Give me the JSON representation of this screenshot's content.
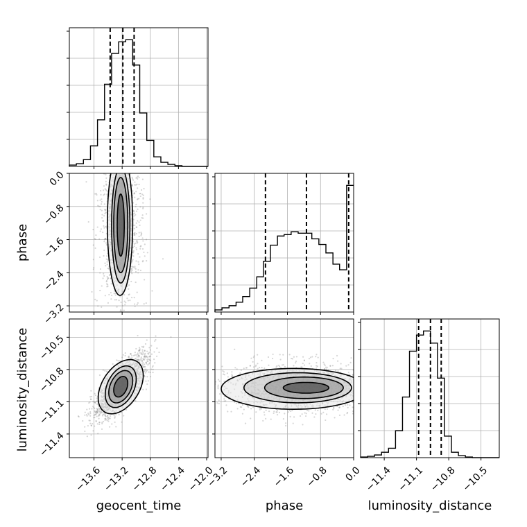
{
  "chart_data": {
    "type": "corner",
    "parameters": [
      "geocent_time",
      "phase",
      "luminosity_distance"
    ],
    "axis_labels": {
      "geocent_time": "geocent_time",
      "phase": "phase",
      "luminosity_distance": "luminosity_distance"
    },
    "ranges": {
      "geocent_time": [
        -13.95,
        -11.98
      ],
      "phase": [
        -3.35,
        0.0
      ],
      "luminosity_distance": [
        -11.62,
        -10.33
      ]
    },
    "ticks": {
      "geocent_time": {
        "values": [
          -13.6,
          -13.2,
          -12.8,
          -12.4,
          -12.0
        ],
        "labels": [
          "−13.6",
          "−13.2",
          "−12.8",
          "−12.4",
          "−12.0"
        ]
      },
      "phase": {
        "values": [
          -3.2,
          -2.4,
          -1.6,
          -0.8,
          0.0
        ],
        "labels": [
          "−3.2",
          "−2.4",
          "−1.6",
          "−0.8",
          "0.0"
        ]
      },
      "luminosity_distance": {
        "values": [
          -11.4,
          -11.1,
          -10.8,
          -10.5
        ],
        "labels": [
          "−11.4",
          "−11.1",
          "−10.8",
          "−10.5"
        ]
      }
    },
    "histograms": {
      "geocent_time": {
        "bin_edges": [
          -13.95,
          -13.85,
          -13.75,
          -13.65,
          -13.55,
          -13.45,
          -13.35,
          -13.25,
          -13.15,
          -13.05,
          -12.95,
          -12.85,
          -12.75,
          -12.65,
          -12.55,
          -12.45,
          -12.35,
          -12.25,
          -12.15,
          -12.05,
          -11.98
        ],
        "counts": [
          2,
          4,
          10,
          30,
          68,
          120,
          165,
          182,
          185,
          148,
          78,
          38,
          14,
          6,
          3,
          1,
          0,
          0,
          0,
          0
        ]
      },
      "phase": {
        "bin_edges": [
          -3.35,
          -3.18,
          -3.01,
          -2.84,
          -2.68,
          -2.51,
          -2.34,
          -2.18,
          -2.01,
          -1.84,
          -1.68,
          -1.51,
          -1.34,
          -1.17,
          -1.01,
          -0.84,
          -0.67,
          -0.5,
          -0.34,
          -0.17,
          0.0
        ],
        "counts": [
          3,
          6,
          9,
          14,
          22,
          34,
          50,
          72,
          95,
          108,
          110,
          114,
          112,
          112,
          104,
          96,
          84,
          68,
          60,
          180
        ]
      },
      "luminosity_distance": {
        "bin_edges": [
          -11.62,
          -11.555,
          -11.49,
          -11.425,
          -11.36,
          -11.295,
          -11.23,
          -11.165,
          -11.1,
          -11.035,
          -10.97,
          -10.905,
          -10.84,
          -10.775,
          -10.71,
          -10.645,
          -10.58,
          -10.515,
          -10.45,
          -10.385,
          -10.33
        ],
        "counts": [
          1,
          2,
          4,
          8,
          14,
          40,
          90,
          158,
          182,
          188,
          170,
          118,
          32,
          8,
          3,
          1,
          0,
          0,
          0,
          0
        ]
      }
    },
    "quantiles": {
      "geocent_time": [
        -13.37,
        -13.19,
        -13.03
      ],
      "phase": [
        -2.13,
        -1.14,
        -0.12
      ],
      "luminosity_distance": [
        -11.08,
        -10.97,
        -10.87
      ]
    },
    "contours_2d": {
      "phase_vs_geocent_time": [
        {
          "center": [
            -13.22,
            -1.25
          ],
          "half_width": [
            0.05,
            0.75
          ]
        },
        {
          "center": [
            -13.22,
            -1.25
          ],
          "half_width": [
            0.1,
            1.15
          ]
        },
        {
          "center": [
            -13.22,
            -1.25
          ],
          "half_width": [
            0.13,
            1.4
          ]
        },
        {
          "center": [
            -13.23,
            -1.2
          ],
          "half_width": [
            0.18,
            1.75
          ]
        }
      ],
      "luminosity_distance_vs_geocent_time": [
        {
          "center": [
            -13.22,
            -10.96
          ],
          "half_width": [
            0.1,
            0.09
          ],
          "tilt": 0.65
        },
        {
          "center": [
            -13.22,
            -10.96
          ],
          "half_width": [
            0.17,
            0.14
          ],
          "tilt": 0.65
        },
        {
          "center": [
            -13.22,
            -10.96
          ],
          "half_width": [
            0.22,
            0.18
          ],
          "tilt": 0.65
        },
        {
          "center": [
            -13.22,
            -10.96
          ],
          "half_width": [
            0.32,
            0.23
          ],
          "tilt": 0.65
        }
      ],
      "luminosity_distance_vs_phase": [
        {
          "center": [
            -1.15,
            -10.97
          ],
          "half_width": [
            0.55,
            0.05
          ]
        },
        {
          "center": [
            -1.2,
            -10.97
          ],
          "half_width": [
            0.95,
            0.1
          ]
        },
        {
          "center": [
            -1.35,
            -10.97
          ],
          "half_width": [
            1.3,
            0.14
          ]
        },
        {
          "center": [
            -1.45,
            -10.98
          ],
          "half_width": [
            1.75,
            0.19
          ]
        }
      ]
    }
  }
}
